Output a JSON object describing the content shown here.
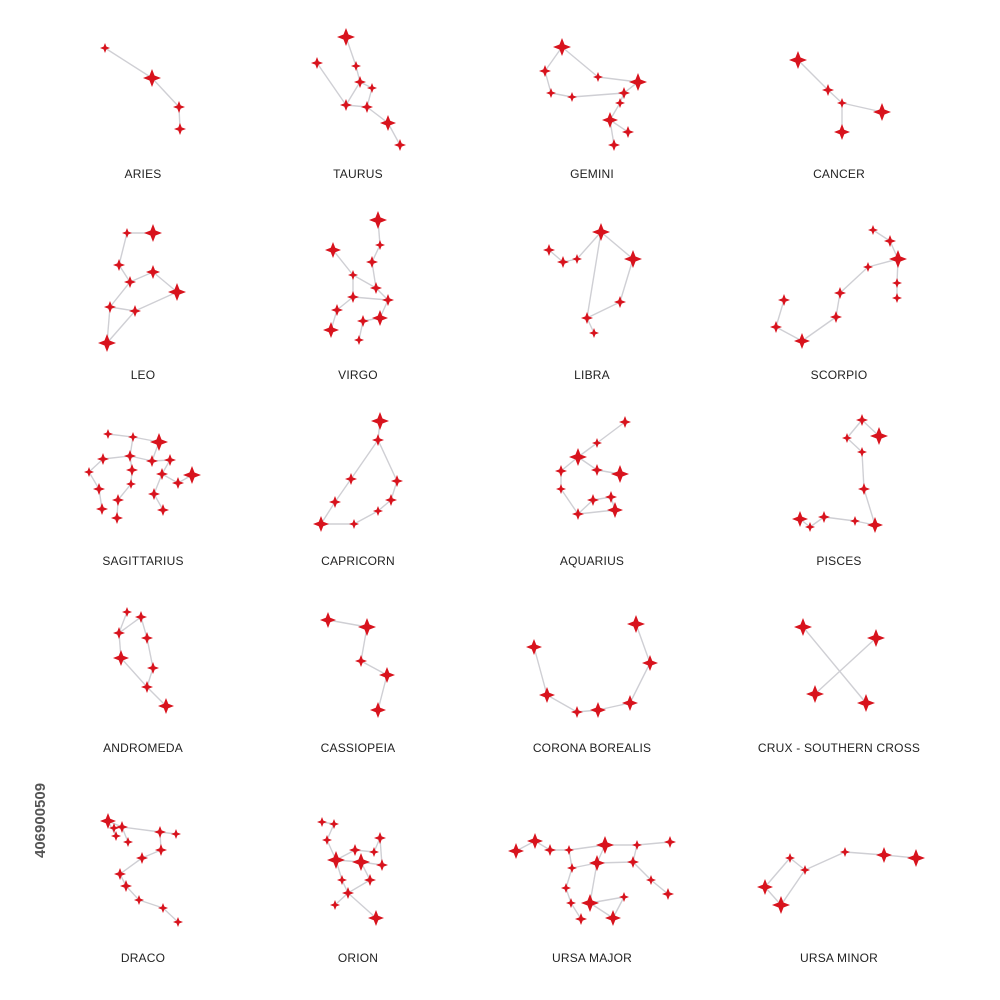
{
  "colors": {
    "star": "#d8131d",
    "line": "#cfcfd4",
    "label": "#222222"
  },
  "constellations": [
    {
      "name": "ARIES"
    },
    {
      "name": "TAURUS"
    },
    {
      "name": "GEMINI"
    },
    {
      "name": "CANCER"
    },
    {
      "name": "LEO"
    },
    {
      "name": "VIRGO"
    },
    {
      "name": "LIBRA"
    },
    {
      "name": "SCORPIO"
    },
    {
      "name": "SAGITTARIUS"
    },
    {
      "name": "CAPRICORN"
    },
    {
      "name": "AQUARIUS"
    },
    {
      "name": "PISCES"
    },
    {
      "name": "ANDROMEDA"
    },
    {
      "name": "CASSIOPEIA"
    },
    {
      "name": "CORONA BOREALIS"
    },
    {
      "name": "CRUX - SOUTHERN CROSS"
    },
    {
      "name": "DRACO"
    },
    {
      "name": "ORION"
    },
    {
      "name": "URSA MAJOR"
    },
    {
      "name": "URSA MINOR"
    }
  ],
  "stock_id": "406900509"
}
